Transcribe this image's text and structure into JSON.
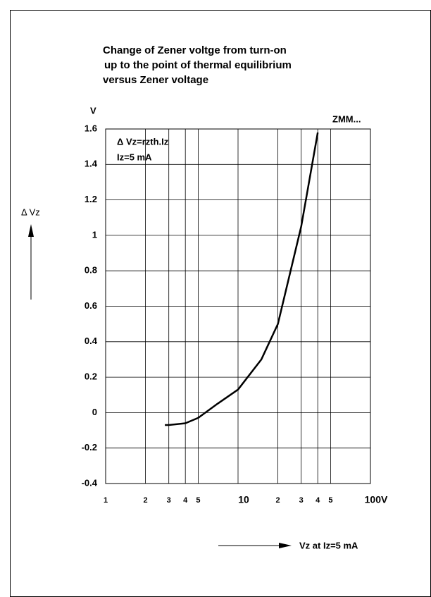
{
  "chart_data": {
    "type": "line",
    "title": [
      "Change of Zener voltge from turn-on",
      "up to the point of thermal equilibrium",
      "versus Zener voltage"
    ],
    "y_unit": "V",
    "ylabel": "Δ Vz",
    "xlabel": "Vz at Iz=5 mA",
    "series_label": "ZMM...",
    "annotations": [
      "Δ Vz=rzth.Iz",
      "Iz=5 mA"
    ],
    "x": [
      2.8,
      3,
      4,
      5,
      7,
      10,
      15,
      20,
      30,
      40
    ],
    "values": [
      -0.07,
      -0.07,
      -0.06,
      -0.03,
      0.05,
      0.13,
      0.3,
      0.5,
      1.05,
      1.58
    ],
    "color": "#000000",
    "xscale": "log",
    "xlim": [
      1,
      100
    ],
    "xticks": [
      1,
      2,
      3,
      4,
      5,
      10,
      {
        "value": 20,
        "label": "2"
      },
      {
        "value": 30,
        "label": "3"
      },
      {
        "value": 40,
        "label": "4"
      },
      {
        "value": 50,
        "label": "5"
      },
      {
        "value": 100,
        "label": "100V"
      }
    ],
    "ylim": [
      -0.4,
      1.6
    ],
    "yticks": [
      -0.4,
      -0.2,
      0,
      0.2,
      0.4,
      0.6,
      0.8,
      1,
      1.2,
      1.4,
      1.6
    ],
    "grid": true
  }
}
